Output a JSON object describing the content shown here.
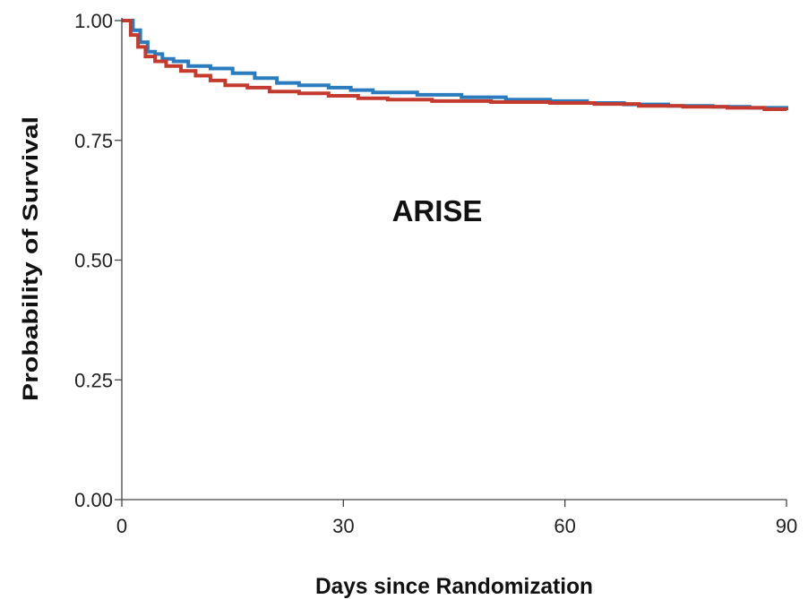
{
  "chart_data": {
    "type": "line",
    "title": "ARISE",
    "xlabel": "Days since Randomization",
    "ylabel": "Probability of Survival",
    "xlim": [
      0,
      90
    ],
    "ylim": [
      0,
      1
    ],
    "xticks": [
      0,
      30,
      60,
      90
    ],
    "xtick_labels": [
      "0",
      "30",
      "60",
      "90"
    ],
    "yticks": [
      0,
      0.25,
      0.5,
      0.75,
      1.0
    ],
    "ytick_labels": [
      "0.00",
      "0.25",
      "0.50",
      "0.75",
      "1.00"
    ],
    "grid": false,
    "curve_style": "step",
    "series": [
      {
        "color": "#2b7bbf",
        "points": [
          [
            0,
            1.0
          ],
          [
            1.2,
            1.0
          ],
          [
            1.5,
            0.98
          ],
          [
            2.3,
            0.98
          ],
          [
            2.5,
            0.955
          ],
          [
            3.3,
            0.955
          ],
          [
            3.5,
            0.935
          ],
          [
            4.5,
            0.93
          ],
          [
            5.5,
            0.92
          ],
          [
            7,
            0.915
          ],
          [
            9,
            0.905
          ],
          [
            12,
            0.9
          ],
          [
            15,
            0.89
          ],
          [
            18,
            0.88
          ],
          [
            21,
            0.87
          ],
          [
            24,
            0.865
          ],
          [
            28,
            0.86
          ],
          [
            31,
            0.855
          ],
          [
            34,
            0.85
          ],
          [
            40,
            0.845
          ],
          [
            46,
            0.84
          ],
          [
            52,
            0.835
          ],
          [
            58,
            0.832
          ],
          [
            63,
            0.828
          ],
          [
            68,
            0.825
          ],
          [
            74,
            0.822
          ],
          [
            80,
            0.82
          ],
          [
            85,
            0.818
          ],
          [
            90,
            0.816
          ]
        ]
      },
      {
        "color": "#c43a2e",
        "points": [
          [
            0,
            1.0
          ],
          [
            1.0,
            1.0
          ],
          [
            1.2,
            0.97
          ],
          [
            2.0,
            0.97
          ],
          [
            2.2,
            0.945
          ],
          [
            3.0,
            0.945
          ],
          [
            3.2,
            0.925
          ],
          [
            4.5,
            0.915
          ],
          [
            6,
            0.905
          ],
          [
            8,
            0.895
          ],
          [
            10,
            0.885
          ],
          [
            12,
            0.875
          ],
          [
            14,
            0.865
          ],
          [
            17,
            0.86
          ],
          [
            20,
            0.852
          ],
          [
            24,
            0.848
          ],
          [
            28,
            0.843
          ],
          [
            32,
            0.838
          ],
          [
            36,
            0.835
          ],
          [
            42,
            0.832
          ],
          [
            50,
            0.83
          ],
          [
            58,
            0.828
          ],
          [
            64,
            0.826
          ],
          [
            70,
            0.822
          ],
          [
            76,
            0.82
          ],
          [
            82,
            0.818
          ],
          [
            87,
            0.815
          ],
          [
            90,
            0.813
          ]
        ]
      }
    ]
  }
}
